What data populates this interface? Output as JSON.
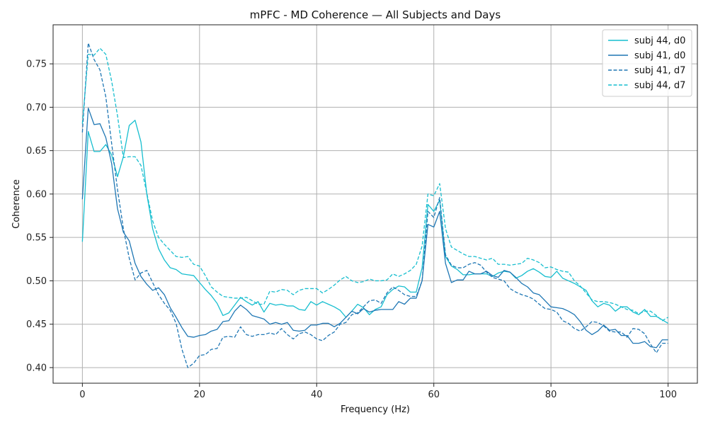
{
  "chart_data": {
    "type": "line",
    "title": "mPFC - MD Coherence — All Subjects and Days",
    "xlabel": "Frequency (Hz)",
    "ylabel": "Coherence",
    "xlim": [
      -5,
      105
    ],
    "ylim": [
      0.382,
      0.795
    ],
    "xticks": [
      0,
      20,
      40,
      60,
      80,
      100
    ],
    "yticks": [
      0.4,
      0.45,
      0.5,
      0.55,
      0.6,
      0.65,
      0.7,
      0.75
    ],
    "grid": true,
    "legend_position": "top-right",
    "x": [
      0,
      1,
      2,
      3,
      4,
      5,
      6,
      7,
      8,
      9,
      10,
      11,
      12,
      13,
      14,
      15,
      16,
      17,
      18,
      19,
      20,
      21,
      22,
      23,
      24,
      25,
      26,
      27,
      28,
      29,
      30,
      31,
      32,
      33,
      34,
      35,
      36,
      37,
      38,
      39,
      40,
      41,
      42,
      43,
      44,
      45,
      46,
      47,
      48,
      49,
      50,
      51,
      52,
      53,
      54,
      55,
      56,
      57,
      58,
      59,
      60,
      61,
      62,
      63,
      64,
      65,
      66,
      67,
      68,
      69,
      70,
      71,
      72,
      73,
      74,
      75,
      76,
      77,
      78,
      79,
      80,
      81,
      82,
      83,
      84,
      85,
      86,
      87,
      88,
      89,
      90,
      91,
      92,
      93,
      94,
      95,
      96,
      97,
      98,
      99,
      100
    ],
    "series": [
      {
        "name": "subj 44, d0",
        "color": "#17becf",
        "dash": "solid",
        "values": [
          0.545,
          0.672,
          0.649,
          0.649,
          0.657,
          0.645,
          0.62,
          0.643,
          0.679,
          0.685,
          0.66,
          0.6,
          0.56,
          0.537,
          0.524,
          0.515,
          0.513,
          0.508,
          0.507,
          0.506,
          0.498,
          0.49,
          0.483,
          0.474,
          0.46,
          0.463,
          0.472,
          0.481,
          0.476,
          0.472,
          0.476,
          0.464,
          0.474,
          0.472,
          0.473,
          0.471,
          0.471,
          0.467,
          0.466,
          0.476,
          0.472,
          0.476,
          0.473,
          0.47,
          0.466,
          0.458,
          0.465,
          0.473,
          0.469,
          0.461,
          0.467,
          0.47,
          0.484,
          0.49,
          0.494,
          0.493,
          0.487,
          0.487,
          0.515,
          0.588,
          0.58,
          0.593,
          0.528,
          0.517,
          0.513,
          0.507,
          0.507,
          0.508,
          0.508,
          0.508,
          0.505,
          0.509,
          0.511,
          0.51,
          0.503,
          0.506,
          0.511,
          0.514,
          0.51,
          0.505,
          0.504,
          0.511,
          0.503,
          0.5,
          0.497,
          0.493,
          0.489,
          0.477,
          0.47,
          0.474,
          0.472,
          0.465,
          0.47,
          0.47,
          0.464,
          0.461,
          0.467,
          0.459,
          0.459,
          0.455,
          0.451
        ]
      },
      {
        "name": "subj 41, d0",
        "color": "#1f77b4",
        "dash": "solid",
        "values": [
          0.594,
          0.699,
          0.68,
          0.681,
          0.665,
          0.635,
          0.583,
          0.556,
          0.546,
          0.52,
          0.505,
          0.496,
          0.489,
          0.492,
          0.484,
          0.469,
          0.458,
          0.446,
          0.436,
          0.435,
          0.437,
          0.438,
          0.442,
          0.444,
          0.453,
          0.454,
          0.465,
          0.472,
          0.467,
          0.46,
          0.458,
          0.456,
          0.45,
          0.452,
          0.45,
          0.452,
          0.443,
          0.442,
          0.443,
          0.449,
          0.449,
          0.451,
          0.451,
          0.447,
          0.451,
          0.458,
          0.465,
          0.462,
          0.468,
          0.464,
          0.466,
          0.467,
          0.467,
          0.467,
          0.476,
          0.473,
          0.48,
          0.48,
          0.5,
          0.565,
          0.562,
          0.58,
          0.52,
          0.498,
          0.501,
          0.501,
          0.511,
          0.508,
          0.508,
          0.511,
          0.506,
          0.504,
          0.512,
          0.51,
          0.504,
          0.497,
          0.493,
          0.486,
          0.484,
          0.477,
          0.47,
          0.469,
          0.468,
          0.465,
          0.461,
          0.453,
          0.443,
          0.438,
          0.442,
          0.449,
          0.443,
          0.444,
          0.437,
          0.437,
          0.428,
          0.428,
          0.43,
          0.424,
          0.423,
          0.432,
          0.432
        ]
      },
      {
        "name": "subj 41, d7",
        "color": "#1f77b4",
        "dash": "dashed",
        "values": [
          0.671,
          0.774,
          0.755,
          0.743,
          0.712,
          0.658,
          0.605,
          0.56,
          0.526,
          0.501,
          0.509,
          0.512,
          0.498,
          0.484,
          0.474,
          0.466,
          0.451,
          0.421,
          0.4,
          0.405,
          0.414,
          0.415,
          0.421,
          0.422,
          0.435,
          0.436,
          0.435,
          0.447,
          0.438,
          0.436,
          0.438,
          0.438,
          0.44,
          0.438,
          0.445,
          0.438,
          0.433,
          0.439,
          0.441,
          0.438,
          0.433,
          0.431,
          0.437,
          0.441,
          0.45,
          0.452,
          0.461,
          0.463,
          0.47,
          0.477,
          0.478,
          0.474,
          0.486,
          0.493,
          0.489,
          0.484,
          0.482,
          0.482,
          0.5,
          0.58,
          0.573,
          0.596,
          0.53,
          0.518,
          0.515,
          0.515,
          0.519,
          0.521,
          0.518,
          0.51,
          0.504,
          0.502,
          0.5,
          0.491,
          0.487,
          0.484,
          0.482,
          0.479,
          0.473,
          0.468,
          0.467,
          0.464,
          0.454,
          0.451,
          0.445,
          0.442,
          0.447,
          0.453,
          0.452,
          0.448,
          0.442,
          0.441,
          0.441,
          0.435,
          0.445,
          0.444,
          0.439,
          0.427,
          0.417,
          0.428,
          0.428
        ]
      },
      {
        "name": "subj 44, d7",
        "color": "#17becf",
        "dash": "dashed",
        "values": [
          0.681,
          0.761,
          0.76,
          0.768,
          0.761,
          0.73,
          0.69,
          0.642,
          0.643,
          0.643,
          0.633,
          0.601,
          0.569,
          0.55,
          0.542,
          0.535,
          0.528,
          0.527,
          0.528,
          0.519,
          0.517,
          0.506,
          0.493,
          0.487,
          0.482,
          0.481,
          0.48,
          0.48,
          0.481,
          0.477,
          0.473,
          0.473,
          0.488,
          0.487,
          0.49,
          0.489,
          0.484,
          0.489,
          0.491,
          0.491,
          0.491,
          0.486,
          0.49,
          0.495,
          0.501,
          0.505,
          0.5,
          0.498,
          0.499,
          0.502,
          0.5,
          0.5,
          0.501,
          0.508,
          0.505,
          0.508,
          0.512,
          0.519,
          0.54,
          0.6,
          0.598,
          0.612,
          0.56,
          0.539,
          0.535,
          0.531,
          0.528,
          0.528,
          0.526,
          0.524,
          0.526,
          0.519,
          0.519,
          0.518,
          0.519,
          0.52,
          0.526,
          0.524,
          0.521,
          0.515,
          0.516,
          0.513,
          0.511,
          0.51,
          0.5,
          0.494,
          0.486,
          0.478,
          0.476,
          0.476,
          0.475,
          0.473,
          0.47,
          0.467,
          0.466,
          0.462,
          0.465,
          0.465,
          0.46,
          0.454,
          0.458
        ]
      }
    ]
  }
}
